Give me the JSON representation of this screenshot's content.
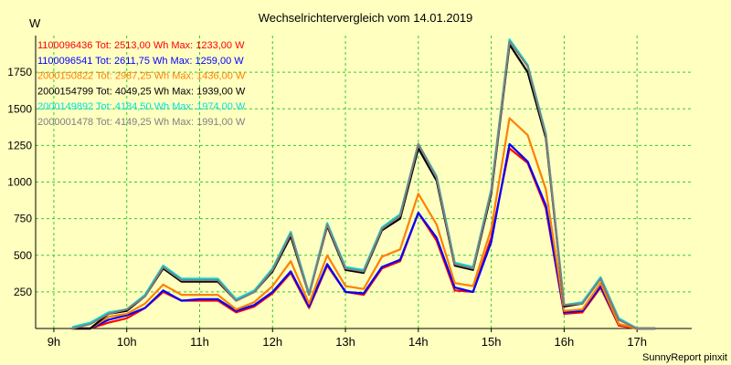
{
  "chart_data": {
    "type": "line",
    "title": "Wechselrichtervergleich vom 14.01.2019",
    "ylabel": "W",
    "xlabel": "",
    "footer": "SunnyReport pinxit",
    "xlim": [
      8.75,
      17.75
    ],
    "ylim": [
      0,
      2000
    ],
    "grid": true,
    "x_ticks": [
      {
        "value": 9,
        "label": "9h"
      },
      {
        "value": 10,
        "label": "10h"
      },
      {
        "value": 11,
        "label": "11h"
      },
      {
        "value": 12,
        "label": "12h"
      },
      {
        "value": 13,
        "label": "13h"
      },
      {
        "value": 14,
        "label": "14h"
      },
      {
        "value": 15,
        "label": "15h"
      },
      {
        "value": 16,
        "label": "16h"
      },
      {
        "value": 17,
        "label": "17h"
      }
    ],
    "y_ticks": [
      250,
      500,
      750,
      1000,
      1250,
      1500,
      1750
    ],
    "x": [
      9.25,
      9.5,
      9.75,
      10.0,
      10.25,
      10.5,
      10.75,
      11.0,
      11.25,
      11.5,
      11.75,
      12.0,
      12.25,
      12.5,
      12.75,
      13.0,
      13.25,
      13.5,
      13.75,
      14.0,
      14.25,
      14.5,
      14.75,
      15.0,
      15.25,
      15.5,
      15.75,
      16.0,
      16.25,
      16.5,
      16.75,
      17.0,
      17.25
    ],
    "series": [
      {
        "name": "1100096436",
        "legend": "1100096436 Tot: 2513,00 Wh Max: 1233,00 W",
        "color": "#ff0000",
        "values": [
          0,
          0,
          40,
          70,
          140,
          250,
          190,
          190,
          190,
          110,
          150,
          240,
          380,
          140,
          430,
          250,
          230,
          410,
          460,
          790,
          600,
          260,
          250,
          620,
          1230,
          1130,
          820,
          100,
          110,
          280,
          20,
          0,
          0
        ]
      },
      {
        "name": "1100096541",
        "legend": "1100096541 Tot: 2611,75 Wh Max: 1259,00 W",
        "color": "#0000ff",
        "values": [
          0,
          0,
          60,
          90,
          140,
          260,
          190,
          200,
          200,
          120,
          160,
          250,
          390,
          150,
          440,
          250,
          240,
          420,
          470,
          790,
          620,
          280,
          250,
          590,
          1259,
          1140,
          840,
          110,
          120,
          290,
          30,
          0,
          0
        ]
      },
      {
        "name": "2000150822",
        "legend": "2000150822 Tot: 2987,25 Wh Max: 1436,00 W",
        "color": "#ff8000",
        "values": [
          0,
          0,
          80,
          100,
          170,
          300,
          230,
          230,
          230,
          130,
          180,
          290,
          460,
          170,
          500,
          290,
          270,
          490,
          540,
          920,
          710,
          310,
          290,
          680,
          1436,
          1320,
          950,
          120,
          130,
          310,
          30,
          0,
          0
        ]
      },
      {
        "name": "2000154799",
        "legend": "2000154799 Tot: 4049,25 Wh Max: 1939,00 W",
        "color": "#000000",
        "values": [
          0,
          0,
          100,
          120,
          220,
          410,
          320,
          320,
          320,
          190,
          250,
          390,
          630,
          230,
          700,
          400,
          380,
          670,
          750,
          1230,
          1010,
          430,
          400,
          920,
          1939,
          1750,
          1300,
          150,
          170,
          340,
          60,
          0,
          0
        ]
      },
      {
        "name": "2000149892",
        "legend": "2000149892 Tot: 4184,50 Wh Max: 1974,00 W",
        "color": "#00e0e0",
        "values": [
          10,
          40,
          110,
          130,
          230,
          430,
          340,
          340,
          340,
          200,
          260,
          410,
          660,
          240,
          720,
          420,
          400,
          690,
          780,
          1260,
          1040,
          450,
          420,
          950,
          1974,
          1800,
          1330,
          160,
          180,
          350,
          70,
          0,
          0
        ]
      },
      {
        "name": "2000001478",
        "legend": "2000001478 Tot: 4149,25 Wh Max: 1991,00 W",
        "color": "#808080",
        "values": [
          0,
          30,
          100,
          130,
          220,
          420,
          330,
          330,
          330,
          190,
          250,
          400,
          650,
          230,
          710,
          410,
          390,
          680,
          770,
          1260,
          1030,
          440,
          410,
          940,
          1960,
          1790,
          1320,
          160,
          170,
          340,
          60,
          0,
          0
        ]
      }
    ]
  }
}
